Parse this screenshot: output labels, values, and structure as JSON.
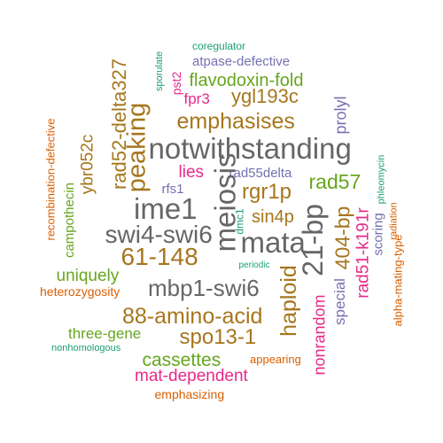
{
  "palette": {
    "green": "#1b9e77",
    "orange": "#d95f02",
    "purple": "#7570b3",
    "magenta": "#e7298a",
    "lime": "#66a61e",
    "gold": "#a6761d",
    "gray": "#666666"
  },
  "words": [
    {
      "text": "coregulator",
      "color": "#1b9e77"
    },
    {
      "text": "sporulate",
      "color": "#1b9e77"
    },
    {
      "text": "atpase-defective",
      "color": "#7570b3"
    },
    {
      "text": "pst2",
      "color": "#e7298a"
    },
    {
      "text": "rad52-delta327",
      "color": "#a6761d"
    },
    {
      "text": "flavodoxin-fold",
      "color": "#66a61e"
    },
    {
      "text": "fpr3",
      "color": "#e7298a"
    },
    {
      "text": "ygl193c",
      "color": "#a6761d"
    },
    {
      "text": "recombination-defective",
      "color": "#d95f02"
    },
    {
      "text": "peaking",
      "color": "#a6761d"
    },
    {
      "text": "prolyl",
      "color": "#7570b3"
    },
    {
      "text": "emphasises",
      "color": "#a6761d"
    },
    {
      "text": "ybr052c",
      "color": "#a6761d"
    },
    {
      "text": "notwithstanding",
      "color": "#666666"
    },
    {
      "text": "lies",
      "color": "#e7298a"
    },
    {
      "text": "phleomycin",
      "color": "#1b9e77"
    },
    {
      "text": "rad55delta",
      "color": "#7570b3"
    },
    {
      "text": "rad57",
      "color": "#66a61e"
    },
    {
      "text": "campothecin",
      "color": "#66a61e"
    },
    {
      "text": "rfs1",
      "color": "#7570b3"
    },
    {
      "text": "rgr1p",
      "color": "#a6761d"
    },
    {
      "text": "radiation",
      "color": "#d95f02"
    },
    {
      "text": "meiosis",
      "color": "#666666"
    },
    {
      "text": "ime1",
      "color": "#666666"
    },
    {
      "text": "sin4p",
      "color": "#a6761d"
    },
    {
      "text": "rad51-k191r",
      "color": "#e7298a"
    },
    {
      "text": "21-bp",
      "color": "#666666"
    },
    {
      "text": "swi4-swi6",
      "color": "#666666"
    },
    {
      "text": "dmc1",
      "color": "#1b9e77"
    },
    {
      "text": "mata",
      "color": "#666666"
    },
    {
      "text": "404-bp",
      "color": "#a6761d"
    },
    {
      "text": "scoring",
      "color": "#7570b3"
    },
    {
      "text": "alpha-mating-type",
      "color": "#d95f02"
    },
    {
      "text": "61-148",
      "color": "#a6761d"
    },
    {
      "text": "uniquely",
      "color": "#66a61e"
    },
    {
      "text": "periodic",
      "color": "#1b9e77"
    },
    {
      "text": "mbp1-swi6",
      "color": "#666666"
    },
    {
      "text": "heterozygosity",
      "color": "#d95f02"
    },
    {
      "text": "haploid",
      "color": "#a6761d"
    },
    {
      "text": "special",
      "color": "#7570b3"
    },
    {
      "text": "88-amino-acid",
      "color": "#a6761d"
    },
    {
      "text": "nonrandom",
      "color": "#e7298a"
    },
    {
      "text": "three-gene",
      "color": "#66a61e"
    },
    {
      "text": "spo13-1",
      "color": "#a6761d"
    },
    {
      "text": "nonhomologous",
      "color": "#1b9e77"
    },
    {
      "text": "cassettes",
      "color": "#66a61e"
    },
    {
      "text": "appearing",
      "color": "#d95f02"
    },
    {
      "text": "mat-dependent",
      "color": "#e7298a"
    },
    {
      "text": "emphasizing",
      "color": "#d95f02"
    }
  ]
}
